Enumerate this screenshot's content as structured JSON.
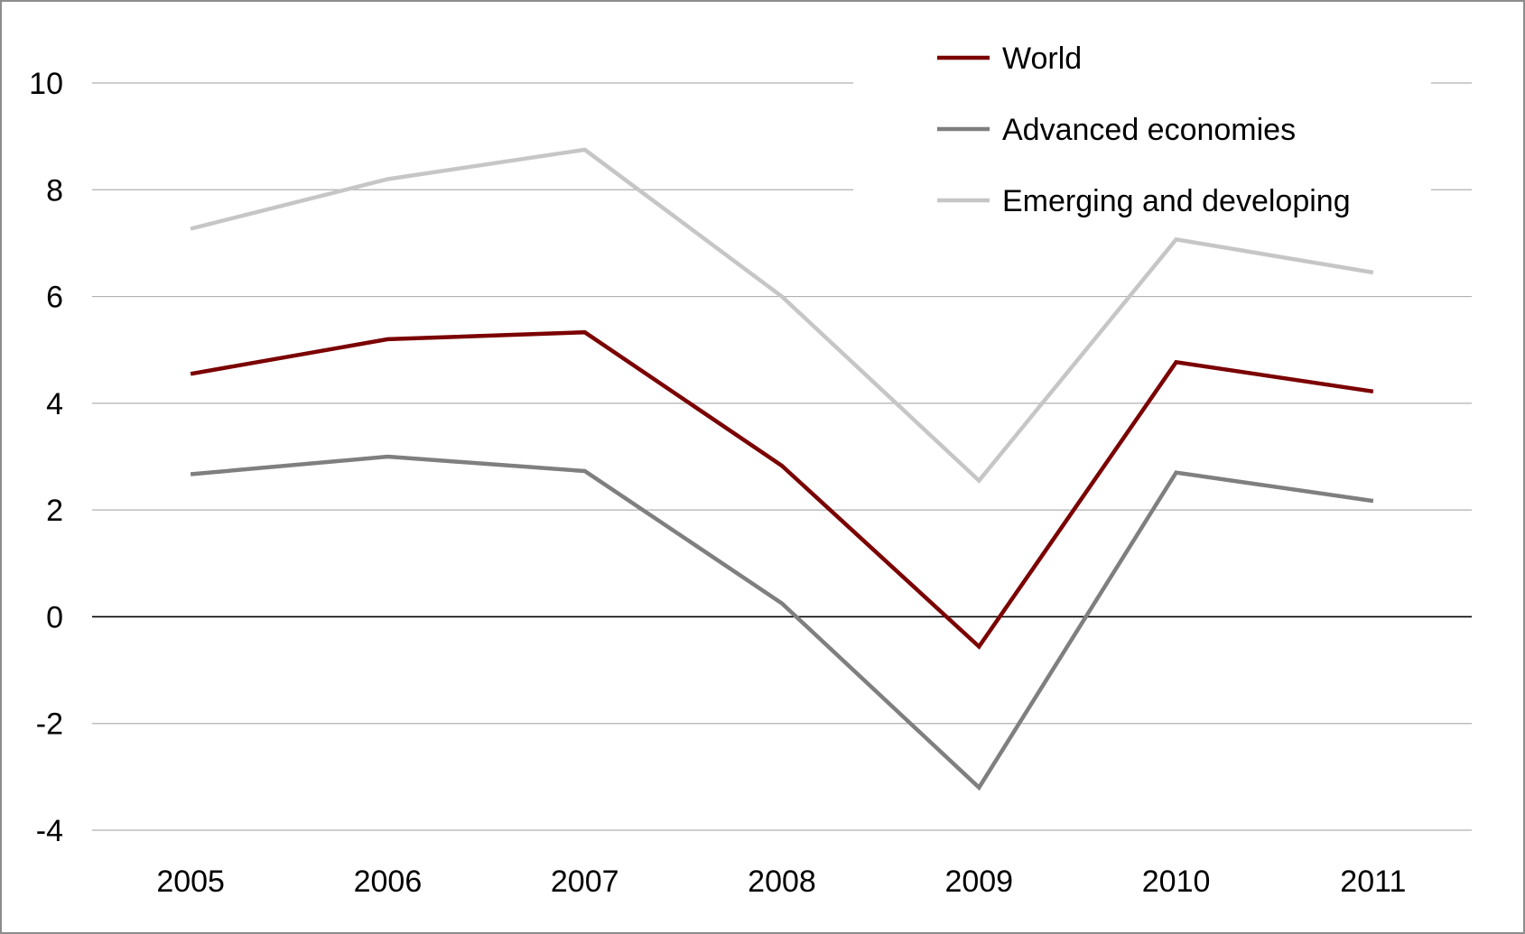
{
  "chart_data": {
    "type": "line",
    "title": "",
    "xlabel": "",
    "ylabel": "",
    "categories": [
      "2005",
      "2006",
      "2007",
      "2008",
      "2009",
      "2010",
      "2011"
    ],
    "ylim": [
      -4,
      10
    ],
    "yticks": [
      -4,
      -2,
      0,
      2,
      4,
      6,
      8,
      10
    ],
    "grid": true,
    "legend_position": "top-right",
    "series": [
      {
        "name": "World",
        "color": "#7b0000",
        "values": [
          4.55,
          5.2,
          5.33,
          2.83,
          -0.56,
          4.77,
          4.22
        ]
      },
      {
        "name": "Advanced economies",
        "color": "#7f7f7f",
        "values": [
          2.67,
          3.0,
          2.73,
          0.25,
          -3.2,
          2.7,
          2.17
        ]
      },
      {
        "name": "Emerging and developing",
        "color": "#c6c6c6",
        "values": [
          7.27,
          8.2,
          8.75,
          6.0,
          2.55,
          7.07,
          6.45
        ]
      }
    ]
  }
}
